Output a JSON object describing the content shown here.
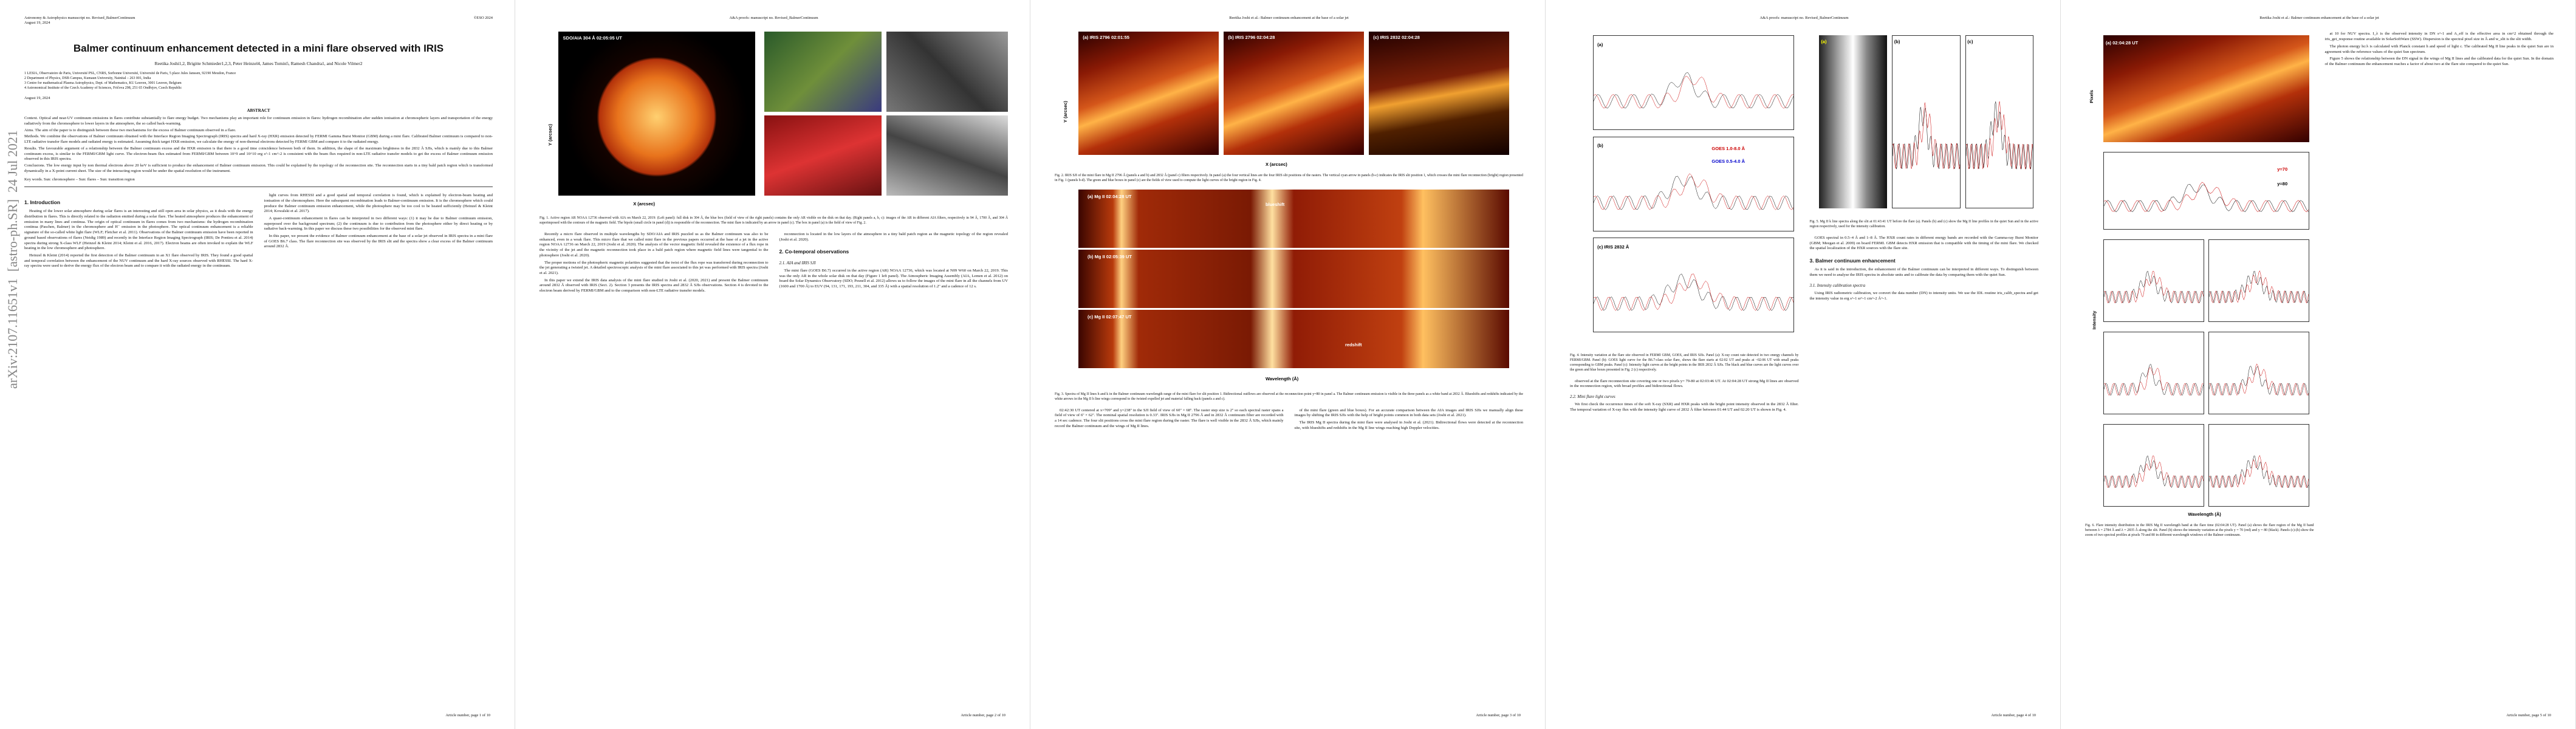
{
  "arxiv_stamp": "arXiv:2107.11651v1  [astro-ph.SR]  24 Jul 2021",
  "pages": [
    {
      "header": {
        "left": [
          "Astronomy & Astrophysics manuscript no. Revised_BalmerContinuum",
          "August 19, 2024"
        ],
        "right": "©ESO 2024"
      },
      "top": [
        {
          "kind": "title",
          "text": "Balmer continuum enhancement detected in a mini flare observed with IRIS"
        },
        {
          "kind": "authors",
          "text": "Reetika Joshi1,2, Brigitte Schmieder1,2,3, Peter Heinzel4, James Tomin5, Ramesh Chandra1, and Nicole Vilmer2"
        },
        {
          "kind": "affil",
          "items": [
            "1 LESIA, Observatoire de Paris, Université PSL, CNRS, Sorbonne Université, Université de Paris, 5 place Jules Janssen, 92190 Meudon, France",
            "2 Department of Physics, DSB Campus, Kumaun University, Nainital – 263 001, India",
            "3 Centre for mathematical Plasma Astrophysics, Dept. of Mathematics, KU Leuven, 3001 Leuven, Belgium",
            "4 Astronomical Institute of the Czech Academy of Sciences, Fričova 298, 251 65 Ondřejov, Czech Republic"
          ]
        },
        {
          "kind": "date",
          "text": "August 19, 2024"
        },
        {
          "kind": "abstract-heading",
          "text": "ABSTRACT"
        },
        {
          "kind": "abstract",
          "text": "Context. Optical and near-UV continuum emissions in flares contribute substantially to flare energy budget. Two mechanisms play an important role for continuum emission in flares: hydrogen recombination after sudden ionisation at chromospheric layers and transportation of the energy radiatively from the chromosphere to lower layers in the atmosphere, the so called back-warming."
        },
        {
          "kind": "abstract",
          "text": "Aims. The aim of the paper is to distinguish between these two mechanisms for the excess of Balmer continuum observed in a flare."
        },
        {
          "kind": "abstract",
          "text": "Methods. We combine the observations of Balmer continuum obtained with the Interface Region Imaging Spectrograph (IRIS) spectra and hard X-ray (HXR) emission detected by FERMI Gamma Burst Monitor (GBM) during a mini flare. Calibrated Balmer continuum is compared to non-LTE radiative transfer flare models and radiated energy is estimated. Assuming thick target HXR emission, we calculate the energy of non-thermal electrons detected by FERMI GBM and compare it to the radiated energy."
        },
        {
          "kind": "abstract",
          "text": "Results. The favourable argument of a relationship between the Balmer continuum excess and the HXR emission is that there is a good time coincidence between both of them. In addition, the shape of the maximum brightness in the 2832 Å SJIs, which is mainly due to this Balmer continuum excess, is similar to the FERMI/GBM light curve. The electron-beam flux estimated from FERMI/GBM between 10^9 and 10^10 erg s^-1 cm^-2 is consistent with the beam flux required in non-LTE radiative transfer models to get the excess of Balmer continuum emission observed in this IRIS spectra."
        },
        {
          "kind": "abstract",
          "text": "Conclusions. The low energy input by non thermal electrons above 20 keV is sufficient to produce the enhancement of Balmer continuum emission. This could be explained by the topology of the reconnection site. The reconnection starts in a tiny bald patch region which is transformed dynamically in a X-point current sheet. The size of the interacting region would be under the spatial resolution of the instrument."
        },
        {
          "kind": "keywords",
          "text": "Key words. Sun: chromosphere – Sun: flares – Sun: transition region"
        }
      ],
      "columns": [
        [
          {
            "kind": "heading",
            "text": "1. Introduction"
          },
          {
            "kind": "para",
            "text": "Heating of the lower solar atmosphere during solar flares is an interesting and still open area in solar physics, as it deals with the energy distribution in flares. This is directly related to the radiation emitted during a solar flare. The heated atmosphere produces the enhancement of emission in many lines and continua. The origin of optical continuum in flares comes from two mechanisms: the hydrogen recombination continua (Paschen, Balmer) in the chromosphere and H⁻ emission in the photosphere. The optical continuum enhancement is a reliable signature of the so-called white light flare (WLF; Fletcher et al. 2011). Observations of the Balmer continuum emission have been reported in ground based observations of flares (Neidig 1989) and recently in the Interface Region Imaging Spectrograph (IRIS; De Pontieu et al. 2014) spectra during strong X-class WLF (Heinzel & Kleint 2014; Kleint et al. 2016, 2017). Electron beams are often invoked to explain the WLF heating in the low chromosphere and photosphere."
          },
          {
            "kind": "para",
            "text": "Heinzel & Kleint (2014) reported the first detection of the Balmer continuum in an X1 flare observed by IRIS. They found a good spatial and temporal correlation between the enhancement of the NUV continuum and the hard X-ray sources observed with RHESSI. The hard X-ray spectra were used to derive the energy flux of the electron beam and to compare it with the radiated energy in the continuum."
          }
        ],
        [
          {
            "kind": "para",
            "text": "light curves from RHESSI and a good spatial and temporal correlation is found, which is explained by electron-beam heating and ionisation of the chromosphere. Here the subsequent recombination leads to Balmer-continuum emission. It is the chromosphere which could produce the Balmer continuum emission enhancement, while the photosphere may be too cool to be heated sufficiently (Heinzel & Kleint 2014; Kowalski et al. 2017)."
          },
          {
            "kind": "para",
            "text": "A quasi-continuum enhancement in flares can be interpreted in two different ways: (1) it may be due to Balmer continuum emission, superposed over the background spectrum; (2) the continuum is due to contribution from the photosphere either by direct heating or by radiative back-warming. In this paper we discuss these two possibilities for the observed mini flare."
          },
          {
            "kind": "para",
            "text": "In this paper, we present the evidence of Balmer continuum enhancement at the base of a solar jet observed in IRIS spectra in a mini flare of GOES B6.7 class. The flare reconnection site was observed by the IRIS slit and the spectra show a clear excess of the Balmer continuum around 2832 Å."
          }
        ]
      ],
      "footer": "Article number, page 1 of 10"
    },
    {
      "header": {
        "center": "A&A proofs: manuscript no. Revised_BalmerContinuum"
      },
      "top": [
        {
          "kind": "figure",
          "labels": [
            "SDO/AIA 304 Å 02:05:05 UT",
            "X (arcsec)",
            "Y (arcsec)"
          ]
        },
        {
          "kind": "caption",
          "text": "Fig. 1. Active region AR NOAA 12736 observed with AIA on March 22, 2019: (Left panel): full disk in 304 Å, the blue box (field of view of the right panels) contains the only AR visible on the disk on that day. (Right panels a, b, c): images of the AR in different AIA filters, respectively in 94 Å, 1700 Å, and 304 Å superimposed with the contours of the magnetic field. The bipole (small circle in panel (d)) is responsible of the reconnection. The mini flare is indicated by an arrow in panel (c). The box in panel (a) is the field of view of Fig. 2."
        }
      ],
      "columns": [
        [
          {
            "kind": "para",
            "text": "Recently a micro flare observed in multiple wavelengths by SDO/AIA and IRIS puzzled us as the Balmer continuum was also to be enhanced, even in a weak flare. This micro flare that we called mini flare in the previous papers occurred at the base of a jet in the active region NOAA 12736 on March 22, 2019 (Joshi et al. 2020). The analysis of the vector magnetic field revealed the existence of a flux rope in the vicinity of the jet and the magnetic reconnection took place in a bald patch region where magnetic field lines were tangential to the photosphere (Joshi et al. 2020)."
          },
          {
            "kind": "para",
            "text": "The proper motions of the photospheric magnetic polarities suggested that the twist of the flux rope was transferred during reconnection to the jet generating a twisted jet. A detailed spectroscopic analysis of the mini flare associated to this jet was performed with IRIS spectra (Joshi et al. 2021)."
          },
          {
            "kind": "para",
            "text": "In this paper we extend the IRIS data analysis of the mini flare studied in Joshi et al. (2020, 2021) and present the Balmer continuum around 2832 Å observed with IRIS (Sect. 2). Section 3 presents the IRIS spectra and 2832 Å SJIs observations. Section 4 is devoted to the electron beam derived by FERMI/GBM and to the comparison with non-LTE radiative transfer models."
          }
        ],
        [
          {
            "kind": "para",
            "text": "reconnection is located in the low layers of the atmosphere in a tiny bald patch region as the magnetic topology of the region revealed (Joshi et al. 2020)."
          },
          {
            "kind": "heading",
            "text": "2. Co-temporal observations"
          },
          {
            "kind": "subheading",
            "text": "2.1. AIA and IRIS SJI"
          },
          {
            "kind": "para",
            "text": "The mini flare (GOES B6.7) occurred in the active region (AR) NOAA 12736, which was located at N09 W60 on March 22, 2019. This was the only AR in the whole solar disk on that day (Figure 1 left panel). The Atmospheric Imaging Assembly (AIA, Lemen et al. 2012) on board the Solar Dynamics Observatory (SDO; Pesnell et al. 2012) allows us to follow the images of the mini flare in all the channels from UV (1600 and 1700 Å) to EUV (94, 131, 171, 193, 211, 304, and 335 Å) with a spatial resolution of 1.2'' and a cadence of 12 s."
          }
        ]
      ],
      "footer": "Article number, page 2 of 10"
    },
    {
      "header": {
        "center": "Reetika Joshi et al.: Balmer continuum enhancement at the base of a solar jet"
      },
      "top": [
        {
          "kind": "figure",
          "labels": [
            "(a) IRIS 2796 02:01:55",
            "(b) IRIS 2796 02:04:28",
            "(c) IRIS 2832 02:04:28",
            "X (arcsec)",
            "Y (arcsec)"
          ]
        },
        {
          "kind": "caption",
          "text": "Fig. 2. IRIS SJI of the mini flare in Mg II 2796 Å (panels a and b) and 2832 Å (panel c) filters respectively. In panel (a) the four vertical lines are the four IRIS slit positions of the rasters. The vertical cyan arrow in panels (b-c) indicates the IRIS slit position 1, which crosses the mini flare reconnection (bright) region presented in Fig. 1 (panels b-d). The green and blue boxes in panel (c) are the fields of view used to compute the light curves of the bright region in Fig. 4."
        },
        {
          "kind": "figure",
          "labels": [
            "(a) Mg II 02:04:28 UT",
            "blueshift",
            "(b) Mg II 02:05:39 UT",
            "(c) Mg II 02:07:47 UT",
            "redshift",
            "Wavelength (Å)"
          ]
        },
        {
          "kind": "caption",
          "text": "Fig. 3. Spectra of Mg II lines h and k in the Balmer continuum wavelength range of the mini flare for slit position 1. Bidirectional outflows are observed at the reconnection point y=80 in panel a. The Balmer continuum emission is visible in the three panels as a white band at 2832 Å. Blueshifts and redshifts indicated by the white arrows in the Mg II h line wings correspond to the twisted expelled jet and material falling back (panels a and c)."
        }
      ],
      "columns": [
        [
          {
            "kind": "para",
            "text": "02:42:30 UT centered at x=709'' and y=238'' in the SJI field of view of 60'' × 68''. The raster step size is 2'' so each spectral raster spans a field of view of 6'' × 62''. The nominal spatial resolution is 0.33''. IRIS SJIs in Mg II 2796 Å and in 2832 Å continuum filter are recorded with a 14 sec cadence. The four slit positions cross the mini flare region during the raster. The flare is well visible in the 2832 Å SJIs, which mainly record the Balmer continuum and the wings of Mg II lines."
          }
        ],
        [
          {
            "kind": "para",
            "text": "of the mini flare (green and blue boxes). For an accurate comparison between the AIA images and IRIS SJIs we manually align these images by shifting the IRIS SJIs with the help of bright points common in both data sets (Joshi et al. 2021)."
          },
          {
            "kind": "para",
            "text": "The IRIS Mg II spectra during the mini flare were analysed in Joshi et al. (2021). Bidirectional flows were detected at the reconnection site, with blueshifts and redshifts in the Mg II line wings reaching high Doppler velocities."
          }
        ]
      ],
      "footer": "Article number, page 3 of 10"
    },
    {
      "header": {
        "center": "A&A proofs: manuscript no. Revised_BalmerContinuum"
      },
      "top": [],
      "columns": [
        [
          {
            "kind": "figure",
            "labels": [
              "(a)",
              "GOES 1.0-8.0 Å",
              "GOES 0.5-4.0 Å",
              "(b)",
              "(c) IRIS 2832 Å"
            ]
          },
          {
            "kind": "caption",
            "text": "Fig. 4. Intensity variation at the flare site observed in FERMI GBM, GOES, and IRIS SJIs. Panel (a): X-ray count rate detected in two energy channels by FERMI/GBM. Panel (b): GOES light curve for the B6.7-class solar flare, shows the flare starts at 02:02 UT and peaks at ~02:06 UT with small peaks corresponding to GBM peaks. Panel (c): Intensity light curves at the bright points in the IRIS 2832 Å SJIs. The black and blue curves are the light curves over the green and blue boxes presented in Fig. 2 (c) respectively."
          },
          {
            "kind": "para",
            "text": "observed at the flare reconnection site covering one or two pixels y= 79-80 at 02:03:46 UT. At 02:04:28 UT strong Mg II lines are observed in the reconnection region, with broad profiles and bidirectional flows."
          },
          {
            "kind": "subheading",
            "text": "2.2. Mini flare light curves"
          },
          {
            "kind": "para",
            "text": "We first check the occurrence times of the soft X-ray (SXR) and HXR peaks with the bright point intensity observed in the 2832 Å filter. The temporal variation of X-ray flux with the intensity light curve of 2832 Å filter between 01:44 UT and 02:20 UT is shown in Fig. 4."
          }
        ],
        [
          {
            "kind": "figure",
            "labels": [
              "(a)",
              "(b)",
              "(c)"
            ]
          },
          {
            "kind": "caption",
            "text": "Fig. 5. Mg II k line spectra along the slit at 01:43:41 UT before the flare (a). Panels (b) and (c) show the Mg II line profiles in the quiet Sun and in the active region respectively, used for the intensity calibration."
          },
          {
            "kind": "para",
            "text": "GOES spectral in 0.5–4 Å and 1–8 Å. The HXR count rates in different energy bands are recorded with the Gamma-ray Burst Monitor (GBM; Meegan et al. 2009) on board FERMI. GBM detects HXR emission that is compatible with the timing of the mini flare. We checked the spatial localization of the HXR sources with the flare site."
          },
          {
            "kind": "heading",
            "text": "3. Balmer continuum enhancement"
          },
          {
            "kind": "para",
            "text": "As it is said in the introduction, the enhancement of the Balmer continuum can be interpreted in different ways. To distinguish between them we need to analyse the IRIS spectra in absolute units and to calibrate the data by comparing them with the quiet Sun."
          },
          {
            "kind": "subheading",
            "text": "3.1. Intensity calibration spectra"
          },
          {
            "kind": "para",
            "text": "Using IRIS radiometric calibration, we convert the data number (DN) to intensity units. We use the IDL routine iris_calib_spectra and get the intensity value in erg s^-1 sr^-1 cm^-2 Å^-1."
          }
        ]
      ],
      "footer": "Article number, page 4 of 10"
    },
    {
      "header": {
        "center": "Reetika Joshi et al.: Balmer continuum enhancement at the base of a solar jet"
      },
      "top": [],
      "columns": [
        [
          {
            "kind": "figure",
            "labels": [
              "(a) 02:04:28 UT",
              "Pixels",
              "y=70",
              "y=80",
              "Intensity",
              "Wavelength (Å)"
            ]
          },
          {
            "kind": "caption",
            "text": "Fig. 6. Flare intensity distribution in the IRIS Mg II wavelength band at the flare time (02:04:28 UT). Panel (a) shows the flare region of the Mg II band between λ = 2784 Å and λ = 2835 Å along the slit. Panel (b) shows the intensity variation at the pixels y = 70 (red) and y = 80 (black). Panels (c)-(h) show the zoom of two spectral profiles at pixels 70 and 80 in different wavelength windows of the Balmer continuum."
          }
        ],
        [
          {
            "kind": "para",
            "text": "at 10 for NUV spectra. I_λ is the observed intensity in DN s^-1 and A_eff is the effective area in cm^2 obtained through the iris_get_response routine available in SolarSoftWare (SSW). Dispersion is the spectral pixel size in Å and w_slit is the slit width."
          },
          {
            "kind": "para",
            "text": "The photon energy hc/λ is calculated with Planck constant h and speed of light c. The calibrated Mg II line peaks in the quiet Sun are in agreement with the reference values of the quiet Sun spectrum."
          },
          {
            "kind": "para",
            "text": "Figure 5 shows the relationship between the DN signal in the wings of Mg II lines and the calibrated data for the quiet Sun. In the domain of the Balmer continuum the enhancement reaches a factor of about two at the flare site compared to the quiet Sun."
          }
        ]
      ],
      "footer": "Article number, page 5 of 10"
    }
  ]
}
